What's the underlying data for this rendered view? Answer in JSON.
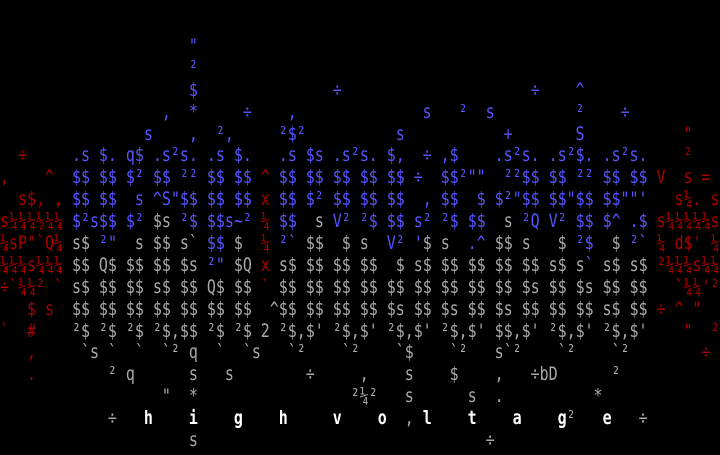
{
  "palette": {
    "b": "#5555ff",
    "g": "#aaaaaa",
    "r": "#aa0000",
    "w": "#ffffff"
  },
  "art": {
    "lines": [
      [
        [
          "                     \"",
          "b"
        ]
      ],
      [
        [
          "                     ²",
          "b"
        ]
      ],
      [
        [
          "                     $               ÷                     ÷    ^",
          "b"
        ]
      ],
      [
        [
          "                  ,  *     ÷    ,              s   ²  s         ²    ÷",
          "b"
        ]
      ],
      [
        [
          "                s    ,  ²,     ²$²          s           +       S",
          "b"
        ],
        [
          "           \"",
          "r"
        ]
      ],
      [
        [
          "  ÷",
          "r"
        ],
        [
          "     .s $. q$ .s²s. .s $.   .s $s .s²s. $,  ÷ ,$    .s²s. .s²$. .s²s.",
          "b"
        ],
        [
          "    ²",
          "r"
        ]
      ],
      [
        [
          ",    ^  ",
          "r"
        ],
        [
          "$$ $$ $² $$ ²² $$ $$ ",
          "b"
        ],
        [
          "^",
          "r"
        ],
        [
          " $$ $$ $$ $$ $$ ÷  $$²\"\"  ²²$$ $$ ²² $$ $$ ",
          "b"
        ],
        [
          "V  s =",
          "r"
        ]
      ],
      [
        [
          "  s$, , ",
          "r"
        ],
        [
          "$$ $$  s ^S\"$$ $$ $$ ",
          "b"
        ],
        [
          "x",
          "r"
        ],
        [
          " $$ $² $$ $$ $$  , $$  $ $²\"$$ $$\"$$ $$\"\"'   ",
          "b"
        ],
        [
          "s¼. s",
          "r"
        ]
      ],
      [
        [
          "s¼¼¼½¼¼ ",
          "r"
        ],
        [
          "$²s$$ $² ",
          "b"
        ],
        [
          "$s",
          "g"
        ],
        [
          " ²$ $$s~² ",
          "b"
        ],
        [
          "¼",
          "r"
        ],
        [
          " $$  ",
          "b"
        ],
        [
          "s",
          "g"
        ],
        [
          " V² ²$ $$ s² ²$ $$  ",
          "b"
        ],
        [
          "s",
          "g"
        ],
        [
          " ²Q V² $$ $^ .$ ",
          "b"
        ],
        [
          "s¼¼¼¼¼s",
          "r"
        ]
      ],
      [
        [
          "¼sP\"`Q¼ ",
          "r"
        ],
        [
          "s$",
          "g"
        ],
        [
          " ²\"",
          "b"
        ],
        [
          "  s $$ s` ",
          "g"
        ],
        [
          "$$",
          "b"
        ],
        [
          " $  ",
          "g"
        ],
        [
          "¼",
          "r"
        ],
        [
          " ²`",
          "b"
        ],
        [
          " $$  $ s  ",
          "g"
        ],
        [
          "V² '",
          "b"
        ],
        [
          "$ s  ",
          "g"
        ],
        [
          ".^",
          "b"
        ],
        [
          " $$ s   $ ",
          "g"
        ],
        [
          "²$",
          "b"
        ],
        [
          "  $ ",
          "g"
        ],
        [
          "²`",
          "b"
        ],
        [
          " ",
          "g"
        ],
        [
          "¼ d$' ¼",
          "r"
        ]
      ],
      [
        [
          "¼¼¼s¼¼¼ ",
          "r"
        ],
        [
          "$$ Q$ $$ $$ $s ",
          "g"
        ],
        [
          "²\"",
          "b"
        ],
        [
          " $Q ",
          "g"
        ],
        [
          "x",
          "r"
        ],
        [
          " s$ $$ $$ $$  $ s$ $$ $$ $$ $$ s$ s",
          "g"
        ],
        [
          "`",
          "b"
        ],
        [
          " s$ s$ ",
          "g"
        ],
        [
          "²¼¼¼s¼¼",
          "r"
        ]
      ],
      [
        [
          "÷`¼¼² ` ",
          "r"
        ],
        [
          "s$ $$ $$ s$ $$ Q$ $$ ",
          "g"
        ],
        [
          "`",
          "r"
        ],
        [
          " $$ $$ $$ $$ $$ $$ $$ $$ $$ $s $$ $s $$ $$   ",
          "g"
        ],
        [
          "`¼¼'²",
          "r"
        ]
      ],
      [
        [
          "   $ s  ",
          "r"
        ],
        [
          "$$ $$ $$ $$ $$ $$ $$  ^$$ $$ $$ $$ $s $$ $s $$ $s $$ $$ $$ s$ $$ ",
          "g"
        ],
        [
          "÷ ^ \"",
          "r"
        ]
      ],
      [
        [
          "`  #    ",
          "r"
        ],
        [
          "²$ ²$ ²$ ²$,$$ ²$ ²$ 2 ²$,$' ²$,$' ²$,$' ²$,$' $$,$' ²$,$' ²$,$'    ",
          "g"
        ],
        [
          "\"  ²",
          "r"
        ]
      ],
      [
        [
          "   ,",
          "r"
        ],
        [
          "     `s `  `  `² q  `  `s   `²    `²    `$    `²   s`²    `²    `²        ",
          "g"
        ],
        [
          "÷",
          "r"
        ]
      ],
      [
        [
          "   .",
          "r"
        ],
        [
          "        ² q      s   s        ÷     ,    s    $    ,   ÷bD      ²",
          "g"
        ]
      ],
      [
        [
          "                  \"  *                 ²¼²   s      s  .          *",
          "g"
        ]
      ],
      [
        [
          "            ÷   ",
          "g"
        ],
        [
          "h    i    g    h     v    o",
          "w"
        ],
        [
          "  ,",
          "g"
        ],
        [
          " l    t    a    g",
          "w"
        ],
        [
          "²",
          "g"
        ],
        [
          "   e",
          "w"
        ],
        [
          "   ÷",
          "g"
        ]
      ],
      [
        [
          "                     s                                ÷",
          "g"
        ]
      ]
    ]
  }
}
